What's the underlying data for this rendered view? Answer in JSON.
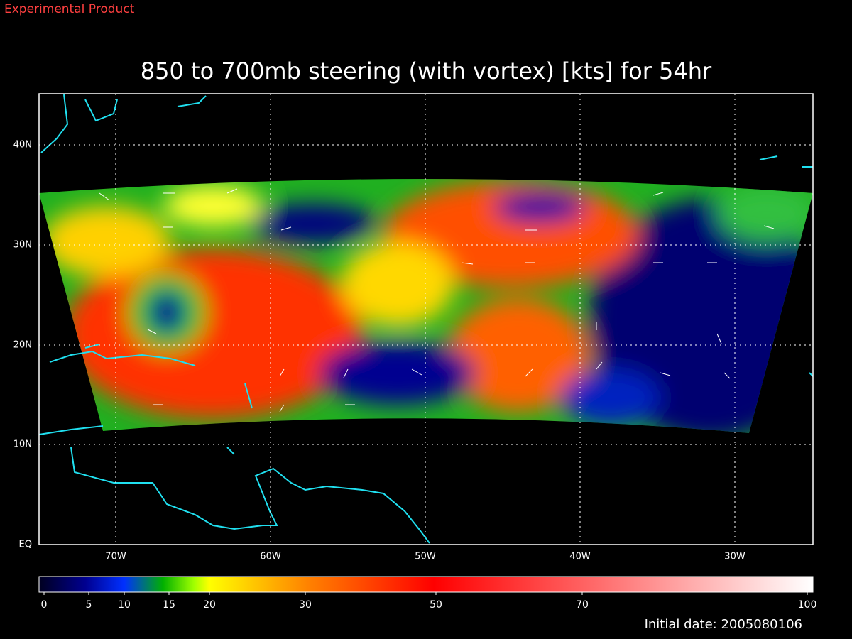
{
  "header": {
    "label": "Experimental Product"
  },
  "map": {
    "title": "850 to 700mb steering (with vortex) [kts] for 54hr",
    "lon_ticks": [
      "70W",
      "60W",
      "50W",
      "40W",
      "30W"
    ],
    "lat_ticks": [
      "EQ",
      "10N",
      "20N",
      "30N",
      "40N"
    ]
  },
  "colorbar": {
    "ticks": [
      0,
      5,
      10,
      15,
      20,
      30,
      50,
      70,
      100
    ]
  },
  "footer": {
    "initial_date": "Initial date: 2005080106"
  }
}
